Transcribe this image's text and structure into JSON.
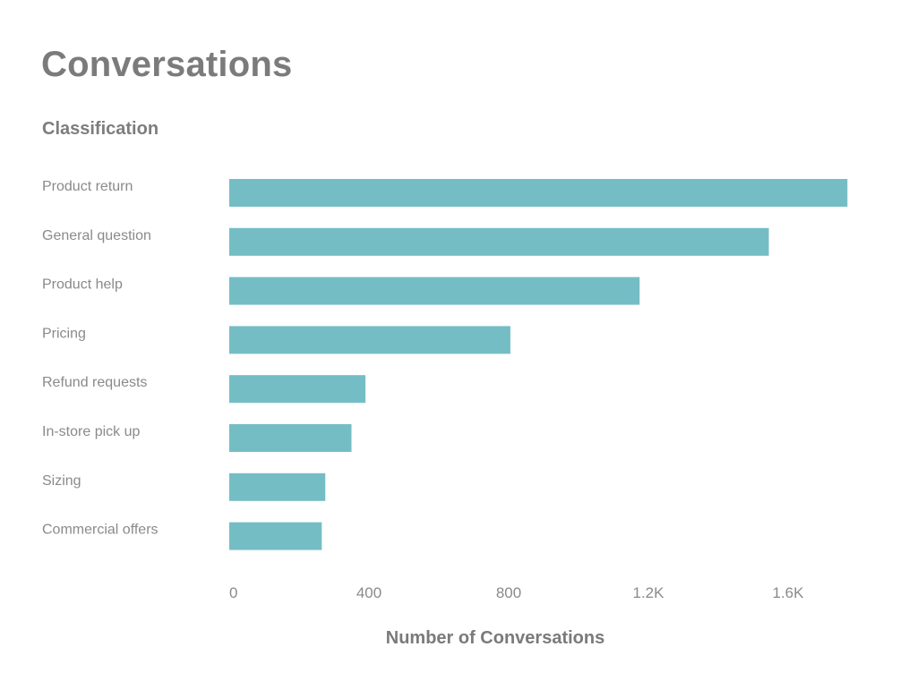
{
  "header": {
    "title": "Conversations"
  },
  "chart_data": {
    "type": "bar",
    "orientation": "horizontal",
    "subtitle": "Classification",
    "xlabel": "Number of Conversations",
    "ylabel": "",
    "categories": [
      "Product return",
      "General question",
      "Product help",
      "Pricing",
      "Refund requests",
      "In-store pick up",
      "Sizing",
      "Commercial offers"
    ],
    "values": [
      1770,
      1545,
      1175,
      805,
      390,
      350,
      275,
      265
    ],
    "xlim": [
      0,
      1800
    ],
    "x_ticks": [
      0,
      400,
      800,
      1200,
      1600
    ],
    "x_tick_labels": [
      "0",
      "400",
      "800",
      "1.2K",
      "1.6K"
    ],
    "grid": false,
    "legend": "none",
    "bar_color": "#75bdc5"
  }
}
